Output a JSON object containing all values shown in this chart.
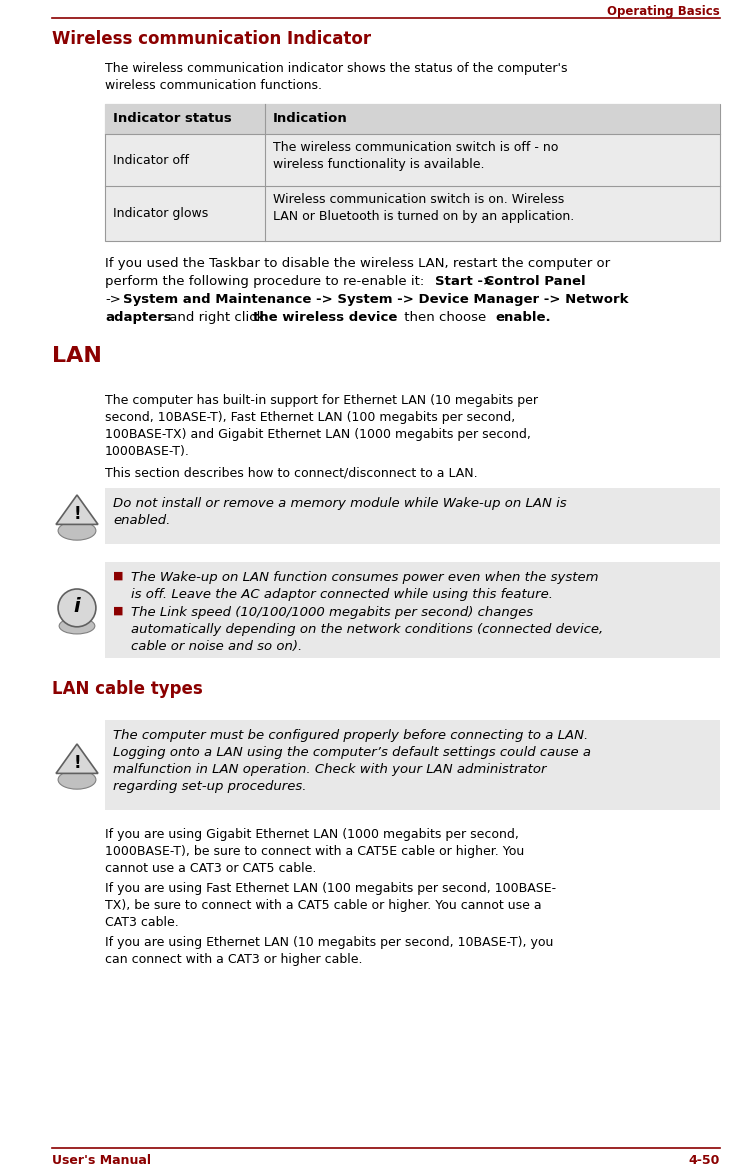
{
  "page_title": "Operating Basics",
  "header_color": "#8B0000",
  "bg_color": "#FFFFFF",
  "text_color": "#000000",
  "section1_title": "Wireless communication Indicator",
  "table_headers": [
    "Indicator status",
    "Indication"
  ],
  "table_row1_col1": "Indicator off",
  "table_row1_col2": "The wireless communication switch is off - no\nwireless functionality is available.",
  "table_row2_col1": "Indicator glows",
  "table_row2_col2": "Wireless communication switch is on. Wireless\nLAN or Bluetooth is turned on by an application.",
  "section2_title": "LAN",
  "lan_intro": "The computer has built-in support for Ethernet LAN (10 megabits per\nsecond, 10BASE-T), Fast Ethernet LAN (100 megabits per second,\n100BASE-TX) and Gigabit Ethernet LAN (1000 megabits per second,\n1000BASE-T).",
  "lan_intro2": "This section describes how to connect/disconnect to a LAN.",
  "warning1": "Do not install or remove a memory module while Wake-up on LAN is\nenabled.",
  "info1": "The Wake-up on LAN function consumes power even when the system\nis off. Leave the AC adaptor connected while using this feature.",
  "info2": "The Link speed (10/100/1000 megabits per second) changes\nautomatically depending on the network conditions (connected device,\ncable or noise and so on).",
  "section3_title": "LAN cable types",
  "warning2": "The computer must be configured properly before connecting to a LAN.\nLogging onto a LAN using the computer’s default settings could cause a\nmalfunction in LAN operation. Check with your LAN administrator\nregarding set-up procedures.",
  "cable1": "If you are using Gigabit Ethernet LAN (1000 megabits per second,\n1000BASE-T), be sure to connect with a CAT5E cable or higher. You\ncannot use a CAT3 or CAT5 cable.",
  "cable2": "If you are using Fast Ethernet LAN (100 megabits per second, 100BASE-\nTX), be sure to connect with a CAT5 cable or higher. You cannot use a\nCAT3 cable.",
  "cable3": "If you are using Ethernet LAN (10 megabits per second, 10BASE-T), you\ncan connect with a CAT3 or higher cable.",
  "footer_left": "User's Manual",
  "footer_right": "4-50",
  "gray_box_color": "#E8E8E8",
  "table_header_bg": "#D3D3D3",
  "table_row_bg": "#EBEBEB",
  "red_bullet": "#8B0000"
}
